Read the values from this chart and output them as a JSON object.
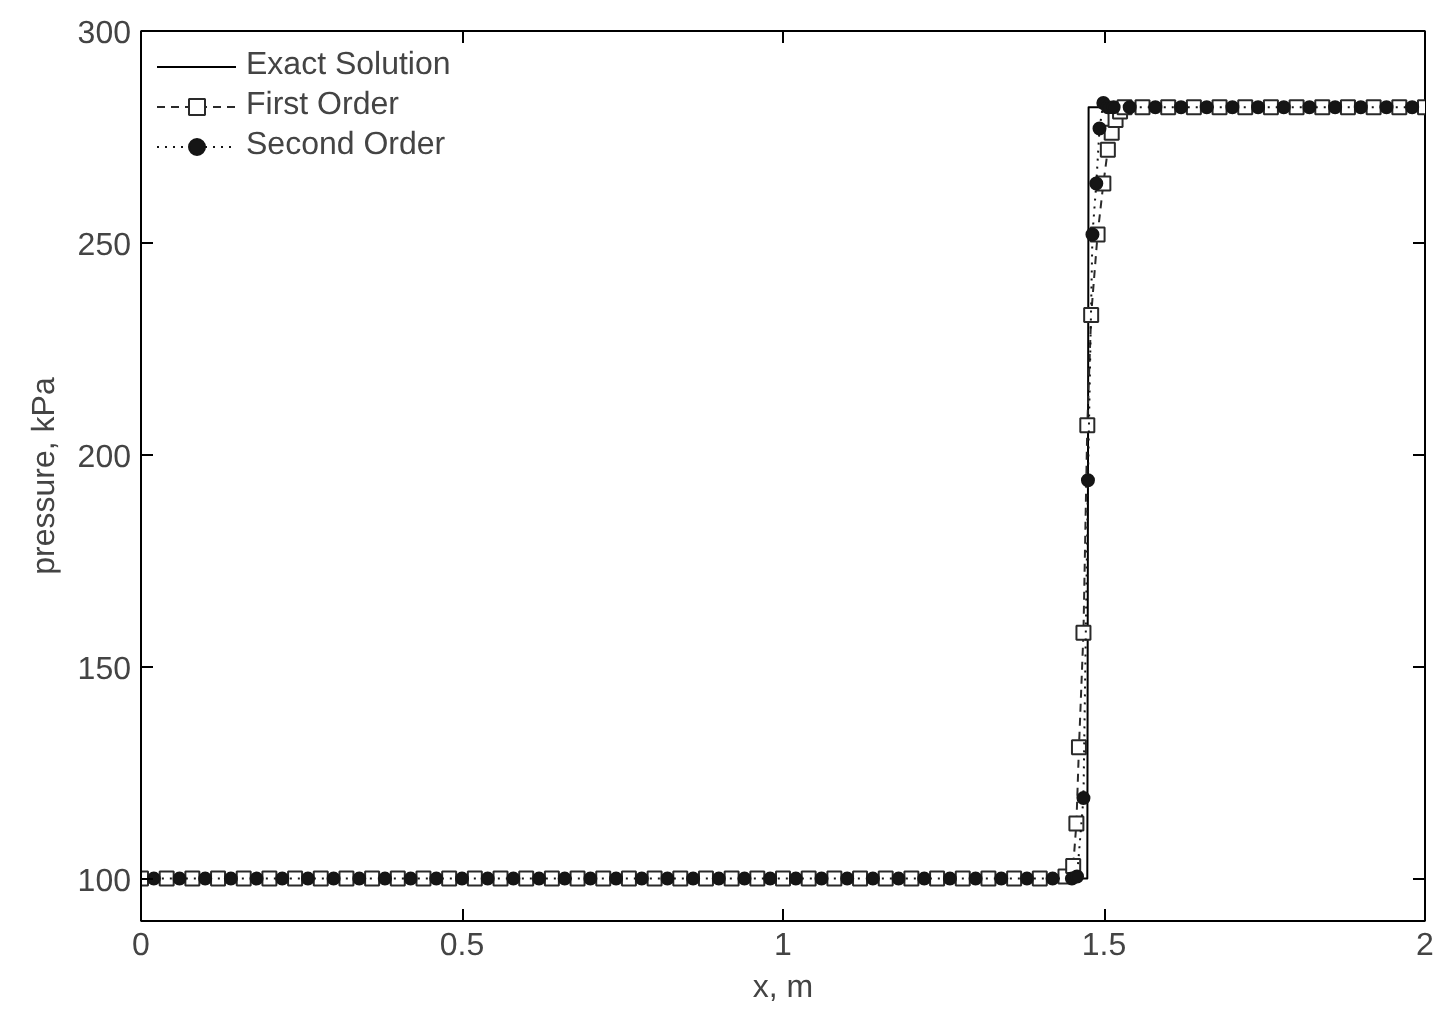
{
  "chart_data": {
    "type": "line",
    "xlabel": "x, m",
    "ylabel": "pressure, kPa",
    "xlim": [
      0,
      2
    ],
    "ylim": [
      90,
      300
    ],
    "xticks": [
      0,
      0.5,
      1,
      1.5,
      2
    ],
    "yticks": [
      100,
      150,
      200,
      250,
      300
    ],
    "grid": false,
    "legend": "top left",
    "series": [
      {
        "name": "Exact Solution",
        "color": "#000000",
        "line_style": "solid",
        "marker": "none",
        "x": [
          0,
          1.474,
          1.476,
          2
        ],
        "values": [
          100,
          100,
          282,
          282
        ]
      },
      {
        "name": "First Order",
        "color": "#2a2a2a",
        "line_style": "dashed",
        "marker": "square",
        "x": [
          0,
          0.04,
          0.08,
          0.12,
          0.16,
          0.2,
          0.24,
          0.28,
          0.32,
          0.36,
          0.4,
          0.44,
          0.48,
          0.52,
          0.56,
          0.6,
          0.64,
          0.68,
          0.72,
          0.76,
          0.8,
          0.84,
          0.88,
          0.92,
          0.96,
          1,
          1.04,
          1.08,
          1.12,
          1.16,
          1.2,
          1.24,
          1.28,
          1.32,
          1.36,
          1.4,
          1.44,
          1.452,
          1.457,
          1.461,
          1.468,
          1.474,
          1.48,
          1.49,
          1.499,
          1.506,
          1.512,
          1.518,
          1.525,
          1.532,
          1.56,
          1.6,
          1.64,
          1.68,
          1.72,
          1.76,
          1.8,
          1.84,
          1.88,
          1.92,
          1.96,
          2
        ],
        "values": [
          100,
          100,
          100,
          100,
          100,
          100,
          100,
          100,
          100,
          100,
          100,
          100,
          100,
          100,
          100,
          100,
          100,
          100,
          100,
          100,
          100,
          100,
          100,
          100,
          100,
          100,
          100,
          100,
          100,
          100,
          100,
          100,
          100,
          100,
          100,
          100,
          100.5,
          103,
          113,
          131,
          158,
          207,
          233,
          252,
          264,
          272,
          276,
          279,
          281,
          282,
          282,
          282,
          282,
          282,
          282,
          282,
          282,
          282,
          282,
          282,
          282,
          282
        ]
      },
      {
        "name": "Second Order",
        "color": "#151515",
        "line_style": "dotted",
        "marker": "circle",
        "x": [
          0.02,
          0.06,
          0.1,
          0.14,
          0.18,
          0.22,
          0.26,
          0.3,
          0.34,
          0.38,
          0.42,
          0.46,
          0.5,
          0.54,
          0.58,
          0.62,
          0.66,
          0.7,
          0.74,
          0.78,
          0.82,
          0.86,
          0.9,
          0.94,
          0.98,
          1.02,
          1.06,
          1.1,
          1.14,
          1.18,
          1.22,
          1.26,
          1.3,
          1.34,
          1.38,
          1.42,
          1.45,
          1.458,
          1.468,
          1.475,
          1.482,
          1.488,
          1.493,
          1.499,
          1.506,
          1.515,
          1.54,
          1.58,
          1.62,
          1.66,
          1.7,
          1.74,
          1.78,
          1.82,
          1.86,
          1.9,
          1.94,
          1.98
        ],
        "values": [
          100,
          100,
          100,
          100,
          100,
          100,
          100,
          100,
          100,
          100,
          100,
          100,
          100,
          100,
          100,
          100,
          100,
          100,
          100,
          100,
          100,
          100,
          100,
          100,
          100,
          100,
          100,
          100,
          100,
          100,
          100,
          100,
          100,
          100,
          100,
          100,
          100,
          100.5,
          119,
          194,
          252,
          264,
          277,
          283,
          282,
          282,
          282,
          282,
          282,
          282,
          282,
          282,
          282,
          282,
          282,
          282,
          282,
          282
        ]
      }
    ]
  }
}
